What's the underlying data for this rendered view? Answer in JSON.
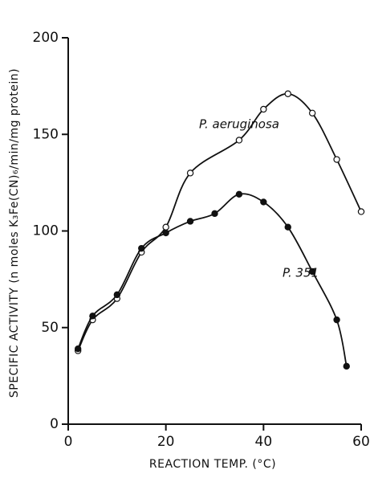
{
  "chart_data": {
    "type": "line",
    "x_label": "REACTION TEMP. (°C)",
    "y_label": "SPECIFIC ACTIVITY (n moles K₃Fe(CN)₆/min/mg protein)",
    "xlim": [
      0,
      60
    ],
    "xticks": [
      0,
      20,
      40,
      60
    ],
    "ylim": [
      0,
      200
    ],
    "yticks": [
      0,
      50,
      100,
      150,
      200
    ],
    "series": [
      {
        "name": "P. aeruginosa",
        "color": "#111111",
        "marker": "open",
        "x": [
          2,
          5,
          10,
          15,
          20,
          25,
          35,
          40,
          45,
          50,
          55,
          60
        ],
        "values": [
          38,
          54,
          65,
          89,
          102,
          130,
          147,
          163,
          171,
          161,
          137,
          110
        ]
      },
      {
        "name": "P. 351",
        "color": "#111111",
        "marker": "filled",
        "x": [
          2,
          5,
          10,
          15,
          20,
          25,
          30,
          35,
          40,
          45,
          50,
          55,
          57
        ],
        "values": [
          39,
          56,
          67,
          91,
          99,
          105,
          109,
          119,
          115,
          102,
          79,
          54,
          30
        ]
      }
    ]
  }
}
